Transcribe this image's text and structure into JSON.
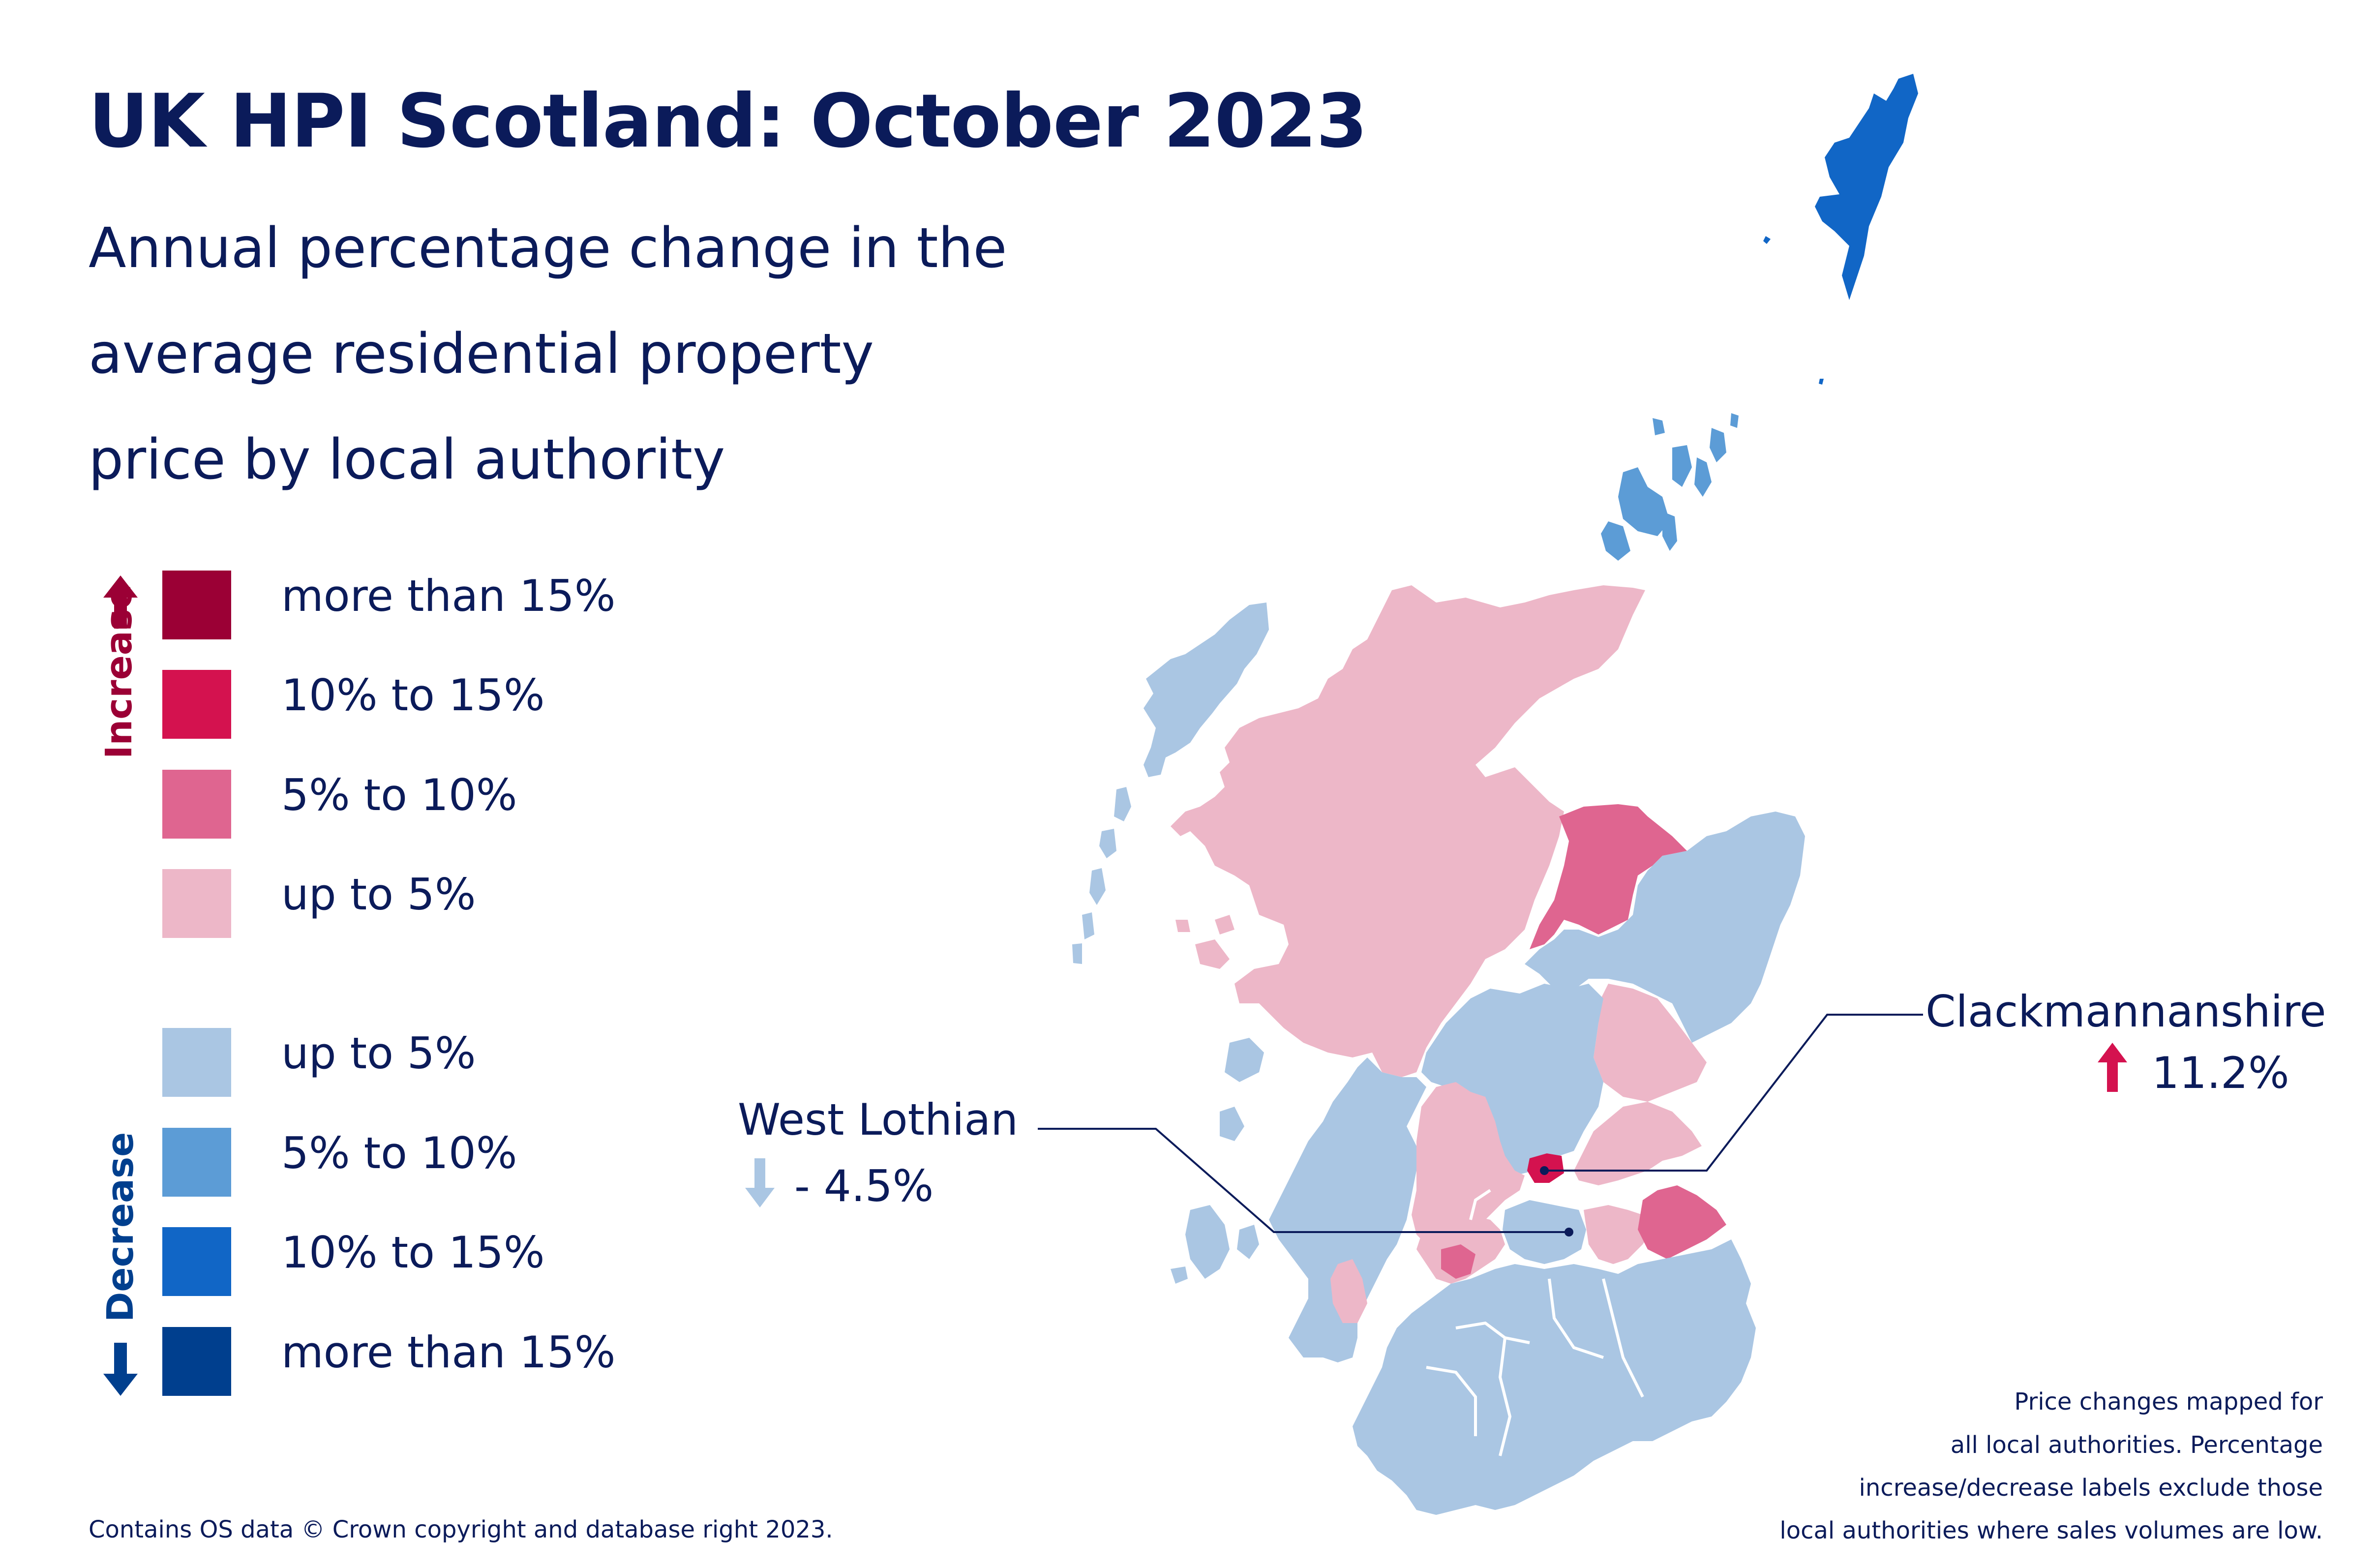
{
  "title": "UK HPI Scotland: October 2023",
  "subtitle_lines": [
    "Annual percentage change in the",
    "average residential property",
    "price by local authority"
  ],
  "legend": {
    "increase_label": "Increase",
    "decrease_label": "Decrease",
    "increase_items": [
      {
        "label": "more than 15%",
        "color": "#9b0035"
      },
      {
        "label": "10% to 15%",
        "color": "#d4124f"
      },
      {
        "label": "5% to 10%",
        "color": "#df6590"
      },
      {
        "label": "up to 5%",
        "color": "#edb7c8"
      }
    ],
    "decrease_items": [
      {
        "label": "up to 5%",
        "color": "#aac6e3"
      },
      {
        "label": "5% to 10%",
        "color": "#5c9cd6"
      },
      {
        "label": "10% to 15%",
        "color": "#1166c6"
      },
      {
        "label": "more than 15%",
        "color": "#003f8e"
      }
    ],
    "increase_arrow_color": "#9b0035",
    "decrease_arrow_color": "#003f8e"
  },
  "callouts": {
    "west_lothian": {
      "name": "West Lothian",
      "value": "- 4.5%",
      "direction": "decrease",
      "color": "#aac6e3"
    },
    "clackmannanshire": {
      "name": "Clackmannanshire",
      "value": "11.2%",
      "direction": "increase",
      "color": "#d4124f"
    }
  },
  "footer": {
    "copyright": "Contains OS data © Crown copyright and database right 2023.",
    "note_lines": [
      "Price changes mapped for",
      "all local authorities. Percentage",
      "increase/decrease labels exclude those",
      "local authorities where sales volumes are low."
    ]
  },
  "map_regions": [
    {
      "name": "Shetland Islands",
      "category": "decrease 10% to 15%"
    },
    {
      "name": "Orkney Islands",
      "category": "decrease 5% to 10%"
    },
    {
      "name": "Highland",
      "category": "increase up to 5%"
    },
    {
      "name": "Moray",
      "category": "increase 5% to 10%"
    },
    {
      "name": "Clackmannanshire",
      "category": "increase 10% to 15%"
    },
    {
      "name": "East Lothian",
      "category": "increase 5% to 10%"
    },
    {
      "name": "West Lothian",
      "category": "decrease up to 5%"
    }
  ]
}
